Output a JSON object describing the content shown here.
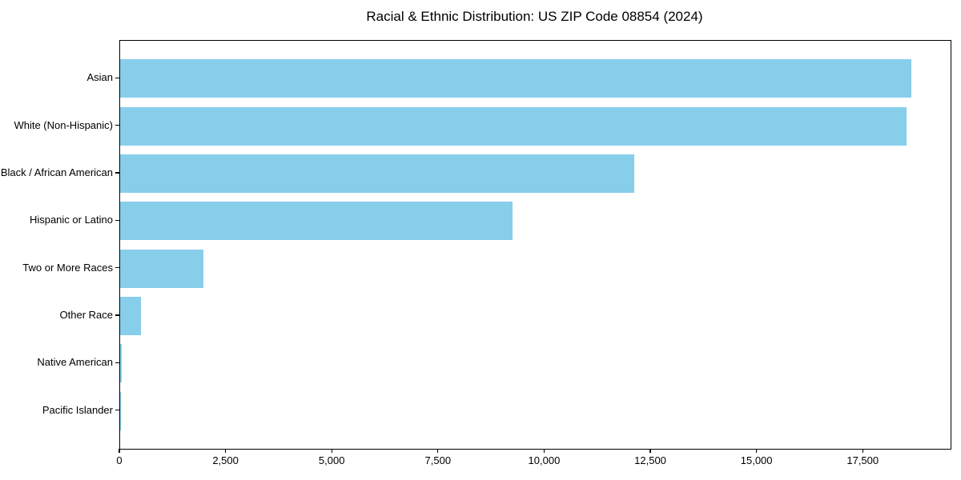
{
  "chart_data": {
    "type": "bar",
    "orientation": "horizontal",
    "title": "Racial & Ethnic Distribution: US ZIP Code 08854 (2024)",
    "categories": [
      "Asian",
      "White (Non-Hispanic)",
      "Black / African American",
      "Hispanic or Latino",
      "Two or More Races",
      "Other Race",
      "Native American",
      "Pacific Islander"
    ],
    "values": [
      18620,
      18520,
      12110,
      9230,
      1960,
      490,
      30,
      10
    ],
    "xlabel": "",
    "ylabel": "",
    "xlim": [
      0,
      19550
    ],
    "x_tick_values": [
      0,
      2500,
      5000,
      7500,
      10000,
      12500,
      15000,
      17500
    ],
    "x_tick_labels": [
      "0",
      "2,500",
      "5,000",
      "7,500",
      "10,000",
      "12,500",
      "15,000",
      "17,500"
    ],
    "grid": false,
    "legend": null,
    "bar_color": "#87CEEB",
    "axis_color": "#000000",
    "background_color": "#FFFFFF"
  }
}
